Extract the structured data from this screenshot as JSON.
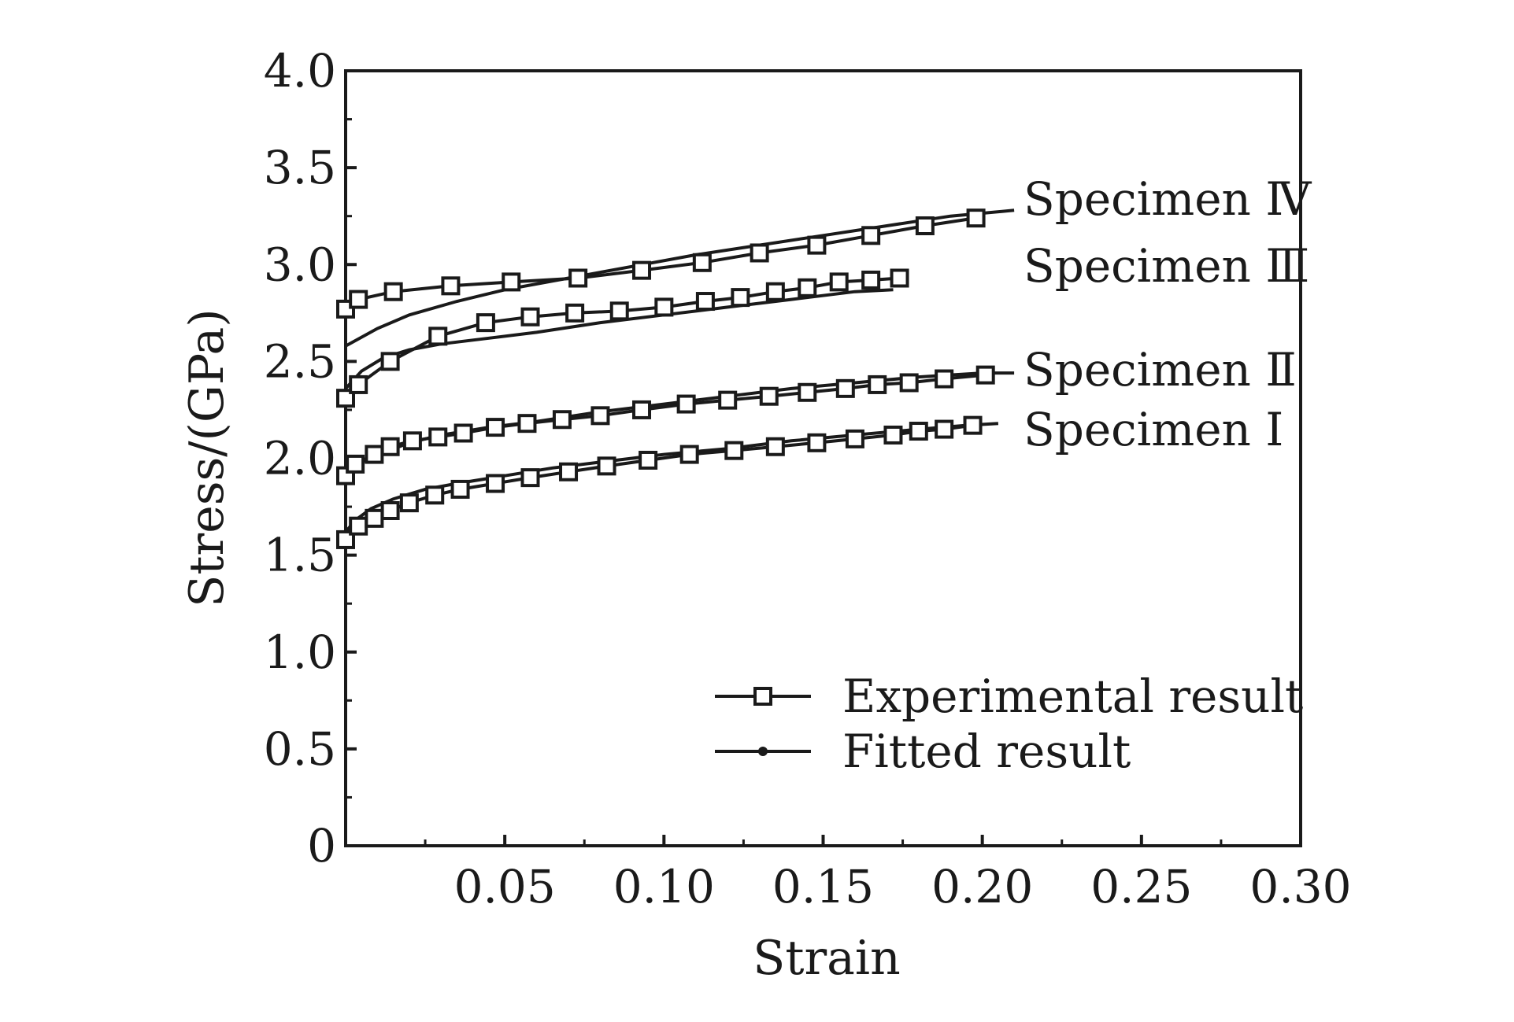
{
  "chart_data": {
    "type": "line",
    "title": "",
    "xlabel": "Strain",
    "ylabel": "Stress/(GPa)",
    "xlim": [
      0,
      0.3
    ],
    "ylim": [
      0,
      4.0
    ],
    "x_ticks": [
      0.05,
      0.1,
      0.15,
      0.2,
      0.25,
      0.3
    ],
    "x_tick_labels": [
      "0.05",
      "0.10",
      "0.15",
      "0.20",
      "0.25",
      "0.30"
    ],
    "y_ticks": [
      0,
      0.5,
      1.0,
      1.5,
      2.0,
      2.5,
      3.0,
      3.5,
      4.0
    ],
    "y_tick_labels": [
      "0",
      "0.5",
      "1.0",
      "1.5",
      "2.0",
      "2.5",
      "3.0",
      "3.5",
      "4.0"
    ],
    "grid": false,
    "legend_position": "bottom-right",
    "legend": [
      {
        "label": "Experimental result",
        "marker": "square"
      },
      {
        "label": "Fitted result",
        "marker": "dot"
      }
    ],
    "series": [
      {
        "name": "Specimen Ⅰ",
        "experimental": {
          "x": [
            0,
            0.004,
            0.009,
            0.014,
            0.02,
            0.028,
            0.036,
            0.047,
            0.058,
            0.07,
            0.082,
            0.095,
            0.108,
            0.122,
            0.135,
            0.148,
            0.16,
            0.172,
            0.18,
            0.188,
            0.197
          ],
          "y": [
            1.58,
            1.65,
            1.69,
            1.73,
            1.77,
            1.81,
            1.84,
            1.87,
            1.9,
            1.93,
            1.96,
            1.99,
            2.02,
            2.04,
            2.06,
            2.08,
            2.1,
            2.12,
            2.14,
            2.15,
            2.17
          ]
        },
        "fitted": {
          "x": [
            0,
            0.003,
            0.008,
            0.015,
            0.025,
            0.035,
            0.05,
            0.065,
            0.08,
            0.1,
            0.12,
            0.14,
            0.16,
            0.18,
            0.195,
            0.205
          ],
          "y": [
            1.62,
            1.68,
            1.74,
            1.79,
            1.84,
            1.87,
            1.91,
            1.95,
            1.98,
            2.02,
            2.05,
            2.09,
            2.12,
            2.15,
            2.17,
            2.18
          ]
        }
      },
      {
        "name": "Specimen Ⅱ",
        "experimental": {
          "x": [
            0,
            0.003,
            0.009,
            0.014,
            0.021,
            0.029,
            0.037,
            0.047,
            0.057,
            0.068,
            0.08,
            0.093,
            0.107,
            0.12,
            0.133,
            0.145,
            0.157,
            0.167,
            0.177,
            0.188,
            0.201
          ],
          "y": [
            1.91,
            1.97,
            2.02,
            2.06,
            2.09,
            2.11,
            2.13,
            2.16,
            2.18,
            2.2,
            2.22,
            2.25,
            2.28,
            2.3,
            2.32,
            2.34,
            2.36,
            2.38,
            2.39,
            2.41,
            2.43
          ]
        },
        "fitted": {
          "x": [
            0,
            0.005,
            0.012,
            0.02,
            0.03,
            0.045,
            0.06,
            0.08,
            0.1,
            0.12,
            0.14,
            0.16,
            0.18,
            0.2,
            0.21
          ],
          "y": [
            1.94,
            1.98,
            2.03,
            2.08,
            2.12,
            2.16,
            2.19,
            2.24,
            2.28,
            2.32,
            2.36,
            2.39,
            2.42,
            2.44,
            2.44
          ]
        }
      },
      {
        "name": "Specimen Ⅲ",
        "experimental": {
          "x": [
            0,
            0.004,
            0.014,
            0.029,
            0.044,
            0.058,
            0.072,
            0.086,
            0.1,
            0.113,
            0.124,
            0.135,
            0.145,
            0.155,
            0.165,
            0.174
          ],
          "y": [
            2.31,
            2.38,
            2.5,
            2.63,
            2.7,
            2.73,
            2.75,
            2.76,
            2.78,
            2.81,
            2.83,
            2.86,
            2.88,
            2.91,
            2.92,
            2.93
          ]
        },
        "fitted": {
          "x": [
            0,
            0.005,
            0.012,
            0.02,
            0.03,
            0.045,
            0.06,
            0.08,
            0.1,
            0.12,
            0.14,
            0.16,
            0.172
          ],
          "y": [
            2.36,
            2.45,
            2.52,
            2.56,
            2.59,
            2.62,
            2.65,
            2.7,
            2.74,
            2.78,
            2.82,
            2.86,
            2.87
          ]
        }
      },
      {
        "name": "Specimen Ⅳ",
        "experimental": {
          "x": [
            0,
            0.004,
            0.015,
            0.033,
            0.052,
            0.073,
            0.093,
            0.112,
            0.13,
            0.148,
            0.165,
            0.182,
            0.198
          ],
          "y": [
            2.77,
            2.82,
            2.86,
            2.89,
            2.91,
            2.93,
            2.97,
            3.01,
            3.06,
            3.1,
            3.15,
            3.2,
            3.24
          ]
        },
        "fitted": {
          "x": [
            0,
            0.01,
            0.02,
            0.035,
            0.05,
            0.07,
            0.09,
            0.11,
            0.13,
            0.15,
            0.17,
            0.19,
            0.21
          ],
          "y": [
            2.58,
            2.67,
            2.74,
            2.81,
            2.87,
            2.93,
            2.99,
            3.05,
            3.1,
            3.15,
            3.2,
            3.25,
            3.28
          ]
        }
      }
    ]
  }
}
